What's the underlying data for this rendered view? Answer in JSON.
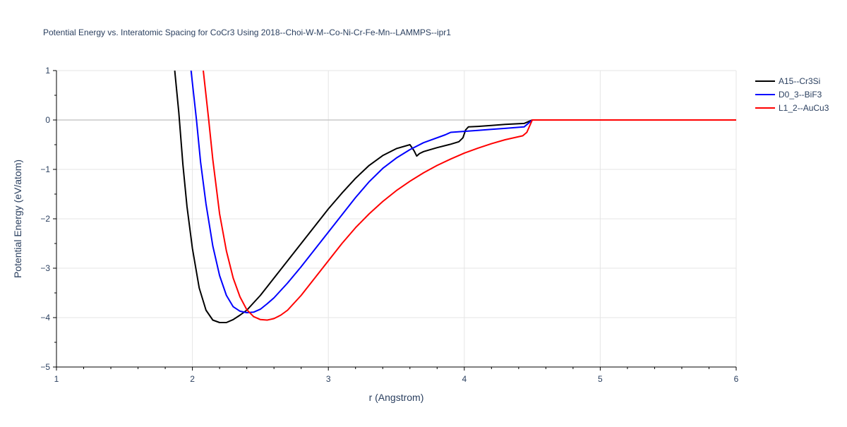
{
  "chart_data": {
    "type": "line",
    "title": "Potential Energy vs. Interatomic Spacing for CoCr3 Using 2018--Choi-W-M--Co-Ni-Cr-Fe-Mn--LAMMPS--ipr1",
    "xlabel": "r (Angstrom)",
    "ylabel": "Potential Energy (eV/atom)",
    "xlim": [
      1,
      6
    ],
    "ylim": [
      -5,
      1
    ],
    "xticks": [
      1,
      2,
      3,
      4,
      5,
      6
    ],
    "xtick_labels": [
      "1",
      "2",
      "3",
      "4",
      "5",
      "6"
    ],
    "yticks": [
      1,
      0,
      -1,
      -2,
      -3,
      -4,
      -5
    ],
    "ytick_labels": [
      "1",
      "0",
      "−1",
      "−2",
      "−3",
      "−4",
      "−5"
    ],
    "grid": true,
    "legend_position": "top-right",
    "series": [
      {
        "name": "A15--Cr3Si",
        "color": "#000000",
        "x": [
          1.87,
          1.9,
          1.93,
          1.96,
          2.0,
          2.05,
          2.1,
          2.15,
          2.2,
          2.25,
          2.3,
          2.35,
          2.4,
          2.45,
          2.5,
          2.6,
          2.7,
          2.8,
          2.9,
          3.0,
          3.1,
          3.2,
          3.3,
          3.4,
          3.5,
          3.6,
          3.63,
          3.65,
          3.67,
          3.7,
          3.8,
          3.9,
          3.96,
          3.99,
          4.01,
          4.03,
          4.1,
          4.2,
          4.3,
          4.44,
          4.5,
          4.6,
          5.0,
          5.5,
          6.0
        ],
        "y": [
          1.0,
          0.15,
          -0.9,
          -1.75,
          -2.6,
          -3.4,
          -3.85,
          -4.05,
          -4.1,
          -4.1,
          -4.04,
          -3.95,
          -3.85,
          -3.7,
          -3.55,
          -3.2,
          -2.85,
          -2.5,
          -2.15,
          -1.8,
          -1.48,
          -1.18,
          -0.92,
          -0.72,
          -0.58,
          -0.5,
          -0.62,
          -0.73,
          -0.68,
          -0.64,
          -0.56,
          -0.49,
          -0.44,
          -0.36,
          -0.2,
          -0.14,
          -0.13,
          -0.11,
          -0.09,
          -0.07,
          0.0,
          0.0,
          0.0,
          0.0,
          0.0
        ]
      },
      {
        "name": "D0_3--BiF3",
        "color": "#0000ff",
        "x": [
          1.99,
          2.03,
          2.06,
          2.1,
          2.15,
          2.2,
          2.25,
          2.3,
          2.35,
          2.4,
          2.45,
          2.5,
          2.55,
          2.6,
          2.7,
          2.8,
          2.9,
          3.0,
          3.1,
          3.2,
          3.3,
          3.4,
          3.5,
          3.6,
          3.7,
          3.86,
          3.9,
          4.0,
          4.1,
          4.2,
          4.3,
          4.44,
          4.5,
          4.6,
          5.0,
          5.5,
          6.0
        ],
        "y": [
          1.0,
          0.0,
          -0.85,
          -1.7,
          -2.55,
          -3.15,
          -3.55,
          -3.78,
          -3.87,
          -3.9,
          -3.89,
          -3.83,
          -3.72,
          -3.6,
          -3.3,
          -2.97,
          -2.62,
          -2.27,
          -1.92,
          -1.57,
          -1.25,
          -0.98,
          -0.77,
          -0.6,
          -0.46,
          -0.3,
          -0.25,
          -0.23,
          -0.21,
          -0.19,
          -0.17,
          -0.14,
          0.0,
          0.0,
          0.0,
          0.0,
          0.0
        ]
      },
      {
        "name": "L1_2--AuCu3",
        "color": "#ff0000",
        "x": [
          2.08,
          2.12,
          2.15,
          2.2,
          2.25,
          2.3,
          2.35,
          2.4,
          2.45,
          2.5,
          2.55,
          2.6,
          2.65,
          2.7,
          2.8,
          2.9,
          3.0,
          3.1,
          3.2,
          3.3,
          3.4,
          3.5,
          3.6,
          3.7,
          3.8,
          3.9,
          4.0,
          4.1,
          4.2,
          4.3,
          4.43,
          4.46,
          4.5,
          4.6,
          5.0,
          5.5,
          6.0
        ],
        "y": [
          1.0,
          0.0,
          -0.8,
          -1.9,
          -2.65,
          -3.2,
          -3.58,
          -3.84,
          -3.98,
          -4.04,
          -4.05,
          -4.02,
          -3.95,
          -3.85,
          -3.55,
          -3.2,
          -2.85,
          -2.5,
          -2.18,
          -1.9,
          -1.65,
          -1.43,
          -1.24,
          -1.07,
          -0.92,
          -0.79,
          -0.67,
          -0.57,
          -0.48,
          -0.4,
          -0.32,
          -0.25,
          0.0,
          0.0,
          0.0,
          0.0,
          0.0
        ]
      }
    ]
  }
}
